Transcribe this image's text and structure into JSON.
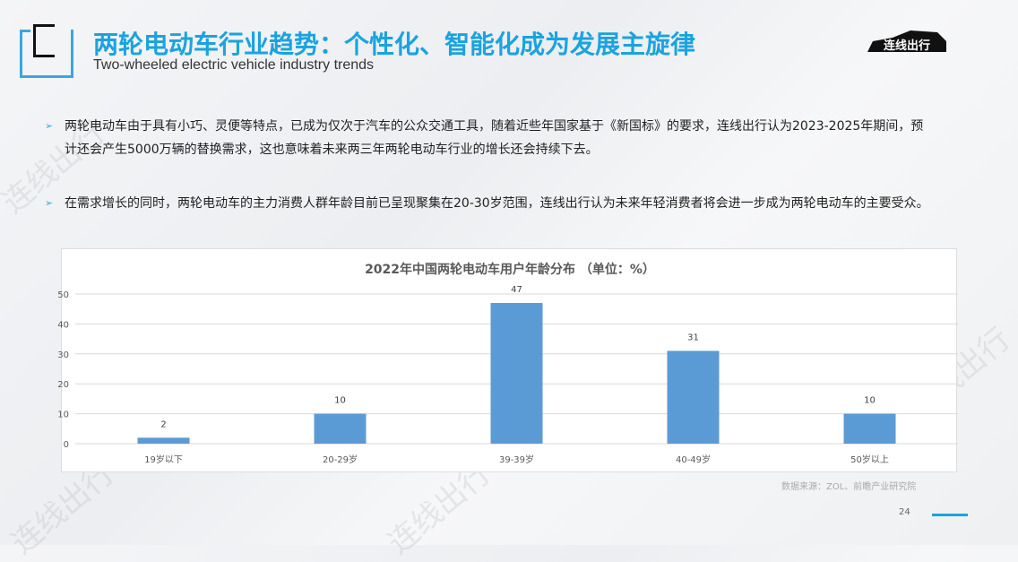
{
  "header": {
    "title": "两轮电动车行业趋势：个性化、智能化成为发展主旋律",
    "subtitle": "Two-wheeled electric vehicle industry trends",
    "logo_text": "连线出行"
  },
  "bullets": [
    {
      "text": "两轮电动车由于具有小巧、灵便等特点，已成为仅次于汽车的公众交通工具，随着近些年国家基于《新国标》的要求，连线出行认为2023-2025年期间，预计还会产生5000万辆的替换需求，这也意味着未来两三年两轮电动车行业的增长还会持续下去。"
    },
    {
      "text": "在需求增长的同时，两轮电动车的主力消费人群年龄目前已呈现聚集在20-30岁范围，连线出行认为未来年轻消费者将会进一步成为两轮电动车的主要受众。"
    }
  ],
  "chart_data": {
    "type": "bar",
    "title": "2022年中国两轮电动车用户年龄分布 （单位：%）",
    "categories": [
      "19岁以下",
      "20-29岁",
      "39-39岁",
      "40-49岁",
      "50岁以上"
    ],
    "values": [
      2,
      10,
      47,
      31,
      10
    ],
    "ylim": [
      0,
      50
    ],
    "yticks": [
      0,
      10,
      20,
      30,
      40,
      50
    ],
    "grid": true,
    "color": "#5b9bd5",
    "data_labels": true
  },
  "footer": {
    "source": "数据来源：ZOL、前瞻产业研究院",
    "page": "24"
  },
  "watermark": "连线出行",
  "colors": {
    "accent": "#1aa3df",
    "bar": "#5b9bd5"
  }
}
